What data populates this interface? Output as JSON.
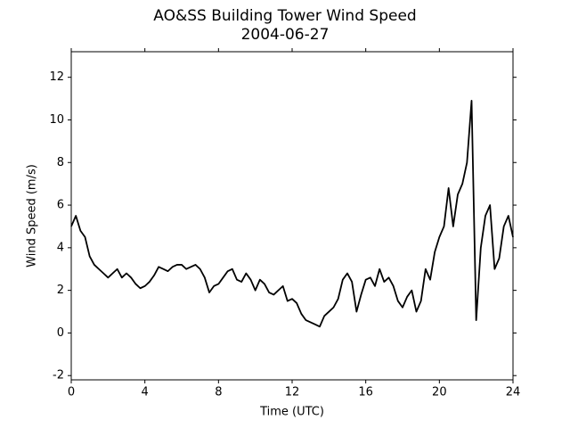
{
  "chart_data": {
    "type": "line",
    "title": "AO&SS Building Tower Wind Speed",
    "subtitle": "2004-06-27",
    "x_label": "Time (UTC)",
    "y_label": "Wind Speed (m/s)",
    "color": "#000000",
    "x": [
      0,
      0.25,
      0.5,
      0.75,
      1,
      1.25,
      1.5,
      1.75,
      2,
      2.25,
      2.5,
      2.75,
      3,
      3.25,
      3.5,
      3.75,
      4,
      4.25,
      4.5,
      4.75,
      5,
      5.25,
      5.5,
      5.75,
      6,
      6.25,
      6.5,
      6.75,
      7,
      7.25,
      7.5,
      7.75,
      8,
      8.25,
      8.5,
      8.75,
      9,
      9.25,
      9.5,
      9.75,
      10,
      10.25,
      10.5,
      10.75,
      11,
      11.25,
      11.5,
      11.75,
      12,
      12.25,
      12.5,
      12.75,
      13,
      13.25,
      13.5,
      13.75,
      14,
      14.25,
      14.5,
      14.75,
      15,
      15.25,
      15.5,
      15.75,
      16,
      16.25,
      16.5,
      16.75,
      17,
      17.25,
      17.5,
      17.75,
      18,
      18.25,
      18.5,
      18.75,
      19,
      19.25,
      19.5,
      19.75,
      20,
      20.25,
      20.5,
      20.75,
      21,
      21.25,
      21.5,
      21.75,
      22,
      22.25,
      22.5,
      22.75,
      23,
      23.25,
      23.5,
      23.75,
      24
    ],
    "values": [
      5.0,
      5.5,
      4.8,
      4.5,
      3.6,
      3.2,
      3.0,
      2.8,
      2.6,
      2.8,
      3.0,
      2.6,
      2.8,
      2.6,
      2.3,
      2.1,
      2.2,
      2.4,
      2.7,
      3.1,
      3.0,
      2.9,
      3.1,
      3.2,
      3.2,
      3.0,
      3.1,
      3.2,
      3.0,
      2.6,
      1.9,
      2.2,
      2.3,
      2.6,
      2.9,
      3.0,
      2.5,
      2.4,
      2.8,
      2.5,
      2.0,
      2.5,
      2.3,
      1.9,
      1.8,
      2.0,
      2.2,
      1.5,
      1.6,
      1.4,
      0.9,
      0.6,
      0.5,
      0.4,
      0.3,
      0.8,
      1.0,
      1.2,
      1.6,
      2.5,
      2.8,
      2.4,
      1.0,
      1.8,
      2.5,
      2.6,
      2.2,
      3.0,
      2.4,
      2.6,
      2.2,
      1.5,
      1.2,
      1.7,
      2.0,
      1.0,
      1.5,
      3.0,
      2.5,
      3.8,
      4.5,
      5.0,
      6.8,
      5.0,
      6.5,
      7.0,
      8.0,
      10.9,
      0.6,
      4.0,
      5.5,
      6.0,
      3.0,
      3.5,
      5.0,
      5.5,
      4.5
    ],
    "xlim": [
      0,
      24
    ],
    "xticks": [
      0,
      4,
      8,
      12,
      16,
      20,
      24
    ],
    "ylim": [
      -2.2,
      13.2
    ],
    "yticks": [
      -2,
      0,
      2,
      4,
      6,
      8,
      10,
      12
    ]
  }
}
